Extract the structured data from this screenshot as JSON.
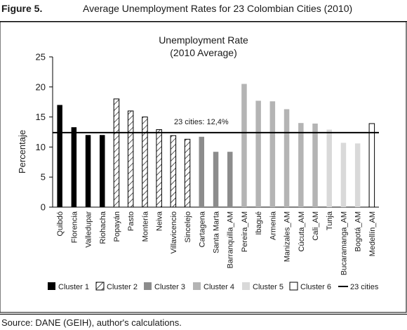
{
  "figure": {
    "label": "Figure 5.",
    "title": "Average Unemployment Rates for 23 Colombian Cities (2010)",
    "source": "Source: DANE (GEIH), author's calculations."
  },
  "chart_data": {
    "type": "bar",
    "title": "Unemployment Rate",
    "subtitle": "(2010 Average)",
    "ylabel": "Percentaje",
    "xlabel": "",
    "ylim": [
      0,
      25
    ],
    "yticks": [
      0,
      5,
      10,
      15,
      20,
      25
    ],
    "grid": false,
    "legend_position": "bottom",
    "categories": [
      "Quibdó",
      "Florencia",
      "Valledupar",
      "Riohacha",
      "Popayán",
      "Pasto",
      "Montería",
      "Neiva",
      "Villavicencio",
      "Sincelejo",
      "Cartagena",
      "Santa Marta",
      "Barranquilla_AM",
      "Pereira_AM",
      "Ibagué",
      "Armenia",
      "Manizales_AM",
      "Cúcuta_AM",
      "Cali_AM",
      "Tunja",
      "Bucaramanga_AM",
      "Bogotá_AM",
      "Medellín_AM"
    ],
    "values": [
      17.0,
      13.3,
      12.0,
      12.0,
      18.0,
      16.0,
      15.0,
      12.9,
      11.9,
      11.3,
      11.7,
      9.2,
      9.2,
      20.5,
      17.7,
      17.6,
      16.3,
      14.0,
      13.9,
      12.9,
      10.7,
      10.6,
      13.9
    ],
    "clusters": [
      1,
      1,
      1,
      1,
      2,
      2,
      2,
      2,
      2,
      2,
      3,
      3,
      3,
      4,
      4,
      4,
      4,
      4,
      4,
      5,
      5,
      5,
      6
    ],
    "series": [
      {
        "name": "Cluster 1",
        "cluster": 1,
        "style": "solid",
        "color": "#000000"
      },
      {
        "name": "Cluster 2",
        "cluster": 2,
        "style": "hatched",
        "color": "#ffffff"
      },
      {
        "name": "Cluster 3",
        "cluster": 3,
        "style": "solid",
        "color": "#8c8c8c"
      },
      {
        "name": "Cluster 4",
        "cluster": 4,
        "style": "solid",
        "color": "#b4b4b4"
      },
      {
        "name": "Cluster 5",
        "cluster": 5,
        "style": "solid",
        "color": "#d9d9d9"
      },
      {
        "name": "Cluster 6",
        "cluster": 6,
        "style": "outline",
        "color": "#ffffff"
      }
    ],
    "reference_line": {
      "name": "23 cities",
      "value": 12.4,
      "annotation": "23 cities: 12,4%"
    }
  }
}
